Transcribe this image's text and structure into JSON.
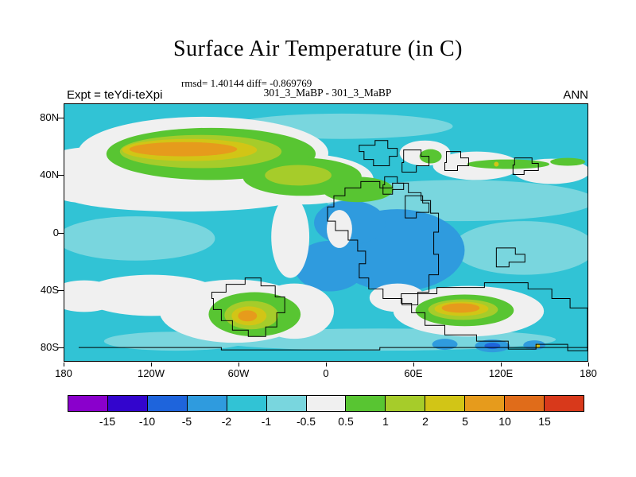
{
  "header": {
    "title": "Surface Air Temperature (in C)",
    "stats_line": "rmsd= 1.40144 diff= -0.869769",
    "comparison_line": "301_3_MaBP - 301_3_MaBP",
    "expt_label": "Expt = teYdi-teXpi",
    "season_label": "ANN"
  },
  "chart_data": {
    "type": "heatmap",
    "subtype": "filled contour lat-lon anomaly map with stepped model coastlines",
    "title": "Surface Air Temperature (in C)",
    "comparison": "301_3_MaBP - 301_3_MaBP",
    "experiment": "teYdi-teXpi",
    "season": "ANN",
    "units": "C",
    "stats": {
      "rmsd": 1.40144,
      "diff": -0.869769
    },
    "axes": {
      "lat": [
        {
          "label": "80N",
          "value": 80
        },
        {
          "label": "40N",
          "value": 40
        },
        {
          "label": "0",
          "value": 0
        },
        {
          "label": "40S",
          "value": -40
        },
        {
          "label": "80S",
          "value": -80
        }
      ],
      "lon": [
        {
          "label": "180",
          "value": -180
        },
        {
          "label": "120W",
          "value": -120
        },
        {
          "label": "60W",
          "value": -60
        },
        {
          "label": "0",
          "value": 0
        },
        {
          "label": "60E",
          "value": 60
        },
        {
          "label": "120E",
          "value": 120
        },
        {
          "label": "180",
          "value": 180
        }
      ],
      "lat_range": [
        -90,
        90
      ],
      "lon_range": [
        -180,
        180
      ]
    },
    "colorbar": {
      "levels": [
        "-15",
        "-10",
        "-5",
        "-2",
        "-1",
        "-0.5",
        "0.5",
        "1",
        "2",
        "5",
        "10",
        "15"
      ],
      "colors": [
        "#8A00CC",
        "#3305CD",
        "#1E64DC",
        "#2F9BDE",
        "#31C3D5",
        "#79D6DE",
        "#F0F0F0",
        "#58C532",
        "#A6CC2A",
        "#D2C516",
        "#E69B1C",
        "#E06C1A",
        "#D8391B"
      ]
    },
    "features": [
      {
        "region": "55N-80N, 170W-70W",
        "anomaly_C": "+1 to +10",
        "note": "large elongated warm band, orange core ~+5 to +10"
      },
      {
        "region": "35N-55N, 75W-5E",
        "anomaly_C": "+0.5 to +2",
        "note": "green / yellow-green warm band"
      },
      {
        "region": "30N-50N, most longitudes",
        "anomaly_C": "-0.5 to +0.5",
        "note": "near-zero (white) band"
      },
      {
        "region": "55N-62N, 30E-115E",
        "anomaly_C": "+0.5 to +1",
        "note": "thin green warm streaks"
      },
      {
        "region": "0N-25N, 0E-45E",
        "anomaly_C": "-5 to -2",
        "note": "cool patch over continental interior"
      },
      {
        "region": "30S-55S, 130W-55W",
        "anomaly_C": "+0.5 to +10",
        "note": "warm anomaly with yellow-orange core near 55S"
      },
      {
        "region": "38S-55S, 35E-90E",
        "anomaly_C": "+0.5 to +10",
        "note": "warm anomaly with orange core"
      },
      {
        "region": "78S-85S, 75E-150E",
        "anomaly_C": "-5 to -2",
        "note": "cold spots along Antarctic coastline"
      },
      {
        "region": "remaining oceans",
        "anomaly_C": "-2 to -0.5",
        "note": "cyan background, mean diff -0.87"
      }
    ]
  }
}
